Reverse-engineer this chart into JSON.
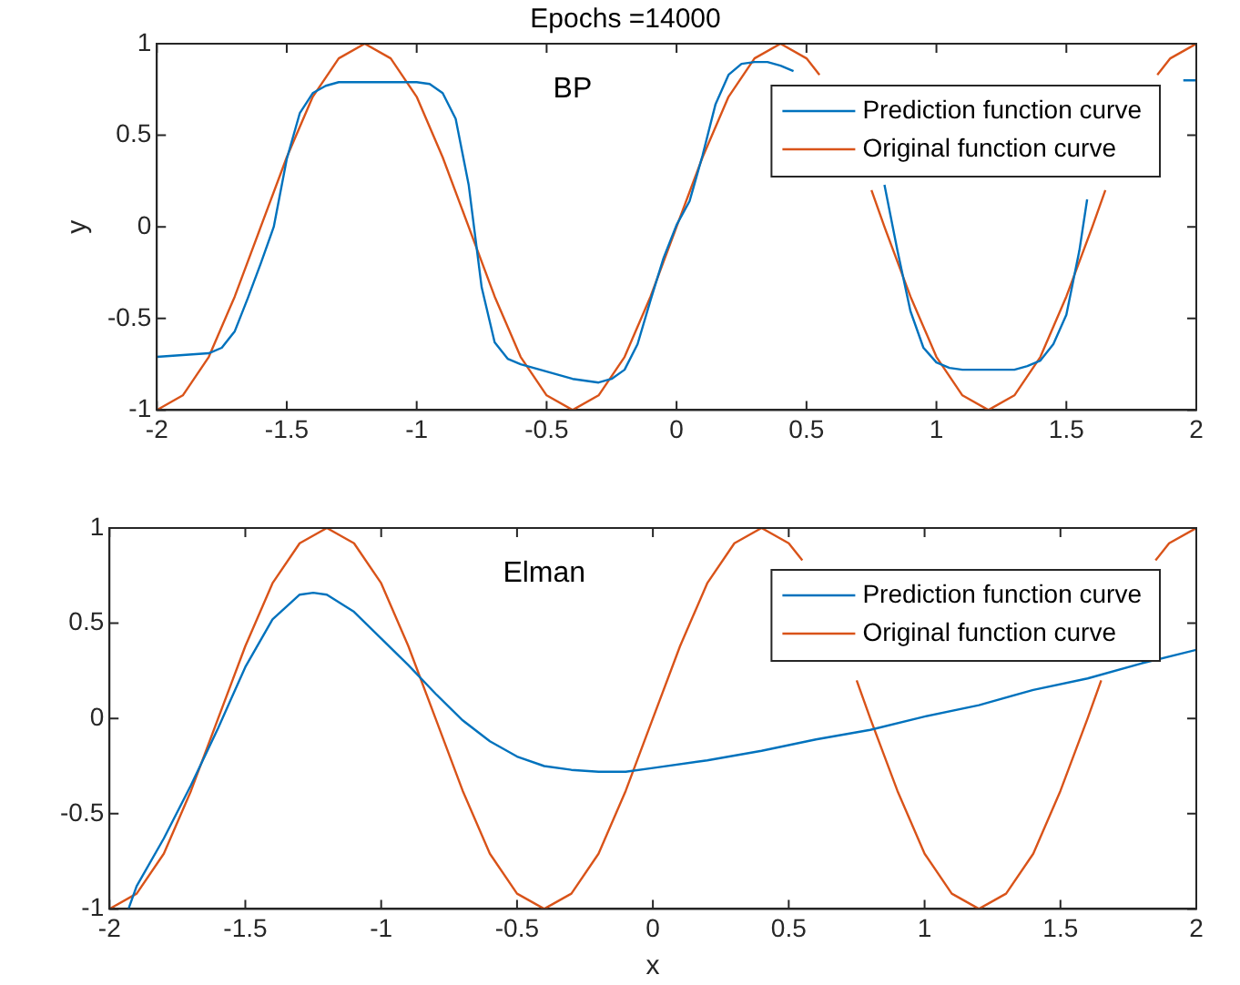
{
  "chart_data": [
    {
      "type": "line",
      "title": "Epochs =14000",
      "ylabel": "y",
      "annotations": [
        "BP"
      ],
      "xlim": [
        -2,
        2
      ],
      "xticks": [
        -2,
        -1.5,
        -1,
        -0.5,
        0,
        0.5,
        1,
        1.5,
        2
      ],
      "ylim": [
        -1,
        1
      ],
      "yticks": [
        -1,
        -0.5,
        0,
        0.5,
        1
      ],
      "grid": false,
      "legend": "top right",
      "series": [
        {
          "name": "Prediction function curve",
          "color": "#0072bd",
          "x": [
            -2,
            -1.8,
            -1.75,
            -1.7,
            -1.65,
            -1.6,
            -1.55,
            -1.5,
            -1.45,
            -1.4,
            -1.35,
            -1.3,
            -1.0,
            -0.95,
            -0.9,
            -0.85,
            -0.8,
            -0.75,
            -0.7,
            -0.65,
            -0.6,
            -0.5,
            -0.4,
            -0.3,
            -0.25,
            -0.2,
            -0.15,
            -0.1,
            -0.05,
            0,
            0.05,
            0.1,
            0.15,
            0.2,
            0.25,
            0.3,
            0.35,
            0.4,
            0.45,
            0.6,
            0.8,
            0.85,
            0.9,
            0.95,
            1.0,
            1.05,
            1.1,
            1.3,
            1.35,
            1.4,
            1.45,
            1.5,
            1.55,
            1.58,
            1.75,
            1.95,
            2.0
          ],
          "values": [
            -0.71,
            -0.69,
            -0.66,
            -0.57,
            -0.39,
            -0.2,
            0,
            0.37,
            0.62,
            0.73,
            0.77,
            0.79,
            0.79,
            0.78,
            0.73,
            0.59,
            0.23,
            -0.33,
            -0.63,
            -0.72,
            -0.75,
            -0.79,
            -0.83,
            -0.85,
            -0.83,
            -0.78,
            -0.64,
            -0.4,
            -0.17,
            0.01,
            0.14,
            0.39,
            0.67,
            0.83,
            0.89,
            0.9,
            0.9,
            0.88,
            0.85,
            null,
            0.23,
            -0.13,
            -0.46,
            -0.66,
            -0.74,
            -0.77,
            -0.78,
            -0.78,
            -0.76,
            -0.73,
            -0.64,
            -0.48,
            -0.13,
            0.15,
            null,
            0.8,
            0.8
          ]
        },
        {
          "name": "Original function curve",
          "color": "#d95319",
          "x": [
            -2,
            -1.9,
            -1.8,
            -1.7,
            -1.6,
            -1.5,
            -1.4,
            -1.3,
            -1.2,
            -1.1,
            -1,
            -0.9,
            -0.8,
            -0.7,
            -0.6,
            -0.5,
            -0.4,
            -0.3,
            -0.2,
            -0.1,
            0,
            0.1,
            0.2,
            0.3,
            0.4,
            0.5,
            0.55,
            0.6,
            0.7,
            0.75,
            0.8,
            0.9,
            1,
            1.1,
            1.2,
            1.3,
            1.4,
            1.5,
            1.6,
            1.65,
            1.7,
            1.8,
            1.85,
            1.9,
            2
          ],
          "values": [
            -1,
            -0.92,
            -0.71,
            -0.38,
            0,
            0.38,
            0.71,
            0.92,
            1,
            0.92,
            0.71,
            0.38,
            0,
            -0.38,
            -0.71,
            -0.92,
            -1,
            -0.92,
            -0.71,
            -0.38,
            0,
            0.38,
            0.71,
            0.92,
            1,
            0.92,
            0.83,
            null,
            null,
            0.2,
            0,
            -0.38,
            -0.71,
            -0.92,
            -1,
            -0.92,
            -0.71,
            -0.38,
            0,
            0.2,
            null,
            null,
            0.83,
            0.92,
            1
          ]
        }
      ]
    },
    {
      "type": "line",
      "xlabel": "x",
      "annotations": [
        "Elman"
      ],
      "xlim": [
        -2,
        2
      ],
      "xticks": [
        -2,
        -1.5,
        -1,
        -0.5,
        0,
        0.5,
        1,
        1.5,
        2
      ],
      "ylim": [
        -1,
        1
      ],
      "yticks": [
        -1,
        -0.5,
        0,
        0.5,
        1
      ],
      "grid": false,
      "legend": "top right",
      "series": [
        {
          "name": "Prediction function curve",
          "color": "#0072bd",
          "x": [
            -1.93,
            -1.9,
            -1.8,
            -1.7,
            -1.6,
            -1.5,
            -1.4,
            -1.3,
            -1.25,
            -1.2,
            -1.1,
            -1.0,
            -0.9,
            -0.8,
            -0.7,
            -0.6,
            -0.5,
            -0.4,
            -0.3,
            -0.2,
            -0.1,
            0,
            0.2,
            0.4,
            0.6,
            0.8,
            1.0,
            1.2,
            1.4,
            1.6,
            1.8,
            2.0
          ],
          "values": [
            -1,
            -0.88,
            -0.63,
            -0.35,
            -0.05,
            0.27,
            0.52,
            0.65,
            0.66,
            0.65,
            0.56,
            0.42,
            0.28,
            0.13,
            -0.01,
            -0.12,
            -0.2,
            -0.25,
            -0.27,
            -0.28,
            -0.28,
            -0.26,
            -0.22,
            -0.17,
            -0.11,
            -0.06,
            0.01,
            0.07,
            0.15,
            0.21,
            0.29,
            0.36
          ]
        },
        {
          "name": "Original function curve",
          "color": "#d95319",
          "x": [
            -2,
            -1.9,
            -1.8,
            -1.7,
            -1.6,
            -1.5,
            -1.4,
            -1.3,
            -1.2,
            -1.1,
            -1,
            -0.9,
            -0.8,
            -0.7,
            -0.6,
            -0.5,
            -0.4,
            -0.3,
            -0.2,
            -0.1,
            0,
            0.1,
            0.2,
            0.3,
            0.4,
            0.5,
            0.55,
            0.6,
            0.7,
            0.75,
            0.8,
            0.9,
            1,
            1.1,
            1.2,
            1.3,
            1.4,
            1.5,
            1.6,
            1.65,
            1.7,
            1.8,
            1.85,
            1.9,
            2
          ],
          "values": [
            -1,
            -0.92,
            -0.71,
            -0.38,
            0,
            0.38,
            0.71,
            0.92,
            1,
            0.92,
            0.71,
            0.38,
            0,
            -0.38,
            -0.71,
            -0.92,
            -1,
            -0.92,
            -0.71,
            -0.38,
            0,
            0.38,
            0.71,
            0.92,
            1,
            0.92,
            0.83,
            null,
            null,
            0.2,
            0,
            -0.38,
            -0.71,
            -0.92,
            -1,
            -0.92,
            -0.71,
            -0.38,
            0,
            0.2,
            null,
            null,
            0.83,
            0.92,
            1
          ]
        }
      ]
    }
  ]
}
